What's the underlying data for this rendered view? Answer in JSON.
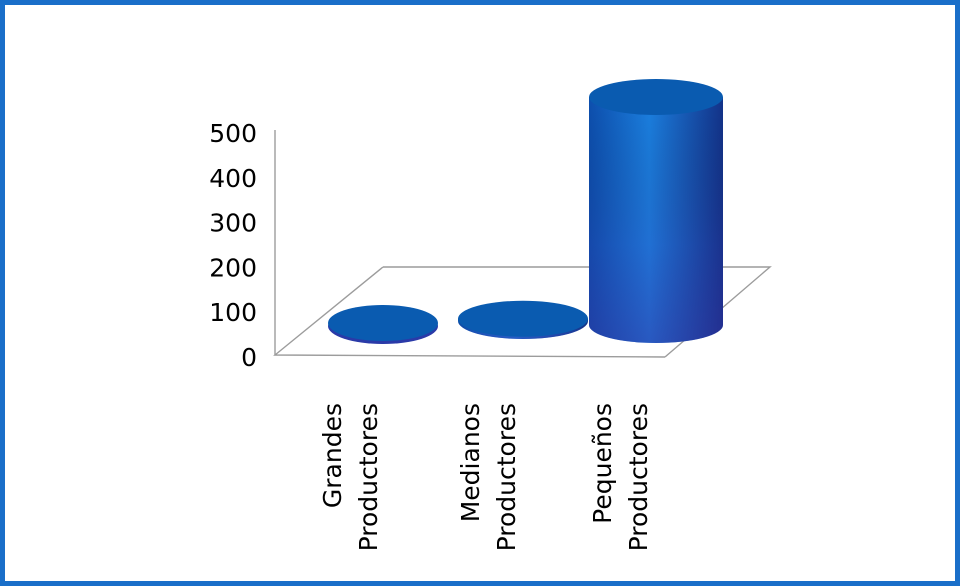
{
  "chart_data": {
    "type": "bar",
    "style": "3d-cylinder",
    "categories": [
      [
        "Grandes",
        "Productores"
      ],
      [
        "Medianos",
        "Productores"
      ],
      [
        "Pequeños",
        "Productores"
      ]
    ],
    "series": [
      {
        "values": [
          0,
          5,
          500
        ]
      }
    ],
    "yticks": [
      "0",
      "100",
      "200",
      "300",
      "400",
      "500"
    ],
    "ylim": [
      0,
      500
    ],
    "grid": false,
    "legend": "none"
  },
  "colors": {
    "frame": "#1a6fc9",
    "cylinder_top": "#0a5bb0",
    "cylinder_side_light": "#1b7fe0",
    "cylinder_side_dark": "#2a3aa8",
    "floor_line": "#9c9c9c"
  }
}
